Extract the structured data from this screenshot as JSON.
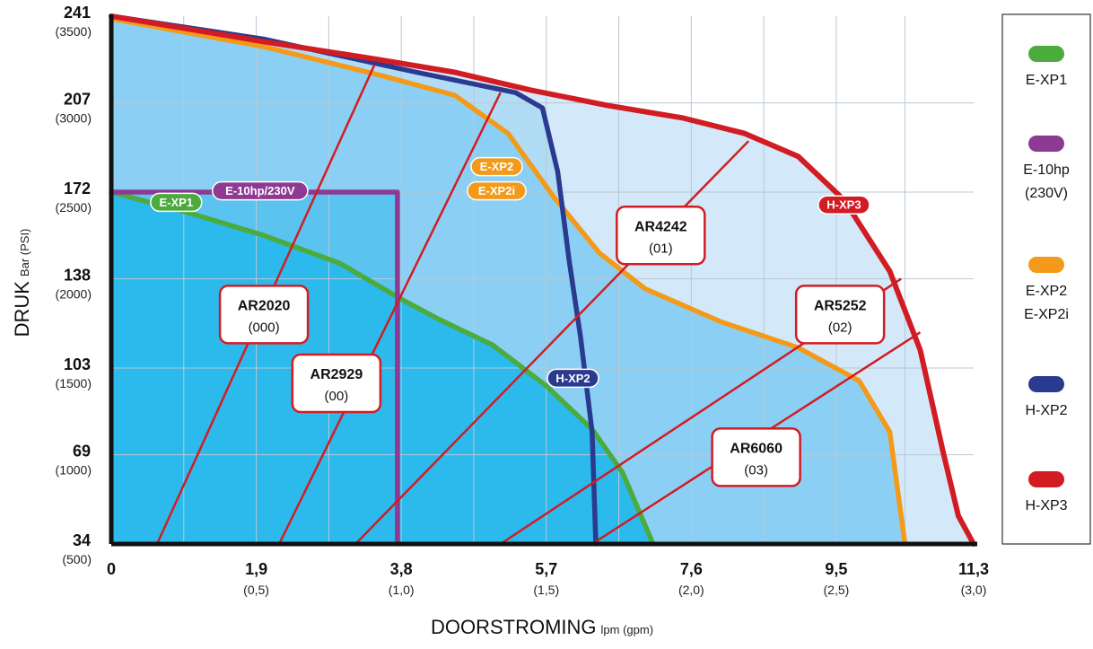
{
  "chart_data": {
    "type": "line",
    "title": "",
    "xlabel": "DOORSTROMING",
    "xunit": "lpm (gpm)",
    "ylabel": "DRUK",
    "yunit": "Bar (PSI)",
    "grid": true,
    "legend_placement": "right",
    "x_ticks": [
      {
        "value": 0,
        "label": "0",
        "sub": ""
      },
      {
        "value": 1.9,
        "label": "1,9",
        "sub": "(0,5)"
      },
      {
        "value": 3.8,
        "label": "3,8",
        "sub": "(1,0)"
      },
      {
        "value": 5.7,
        "label": "5,7",
        "sub": "(1,5)"
      },
      {
        "value": 7.6,
        "label": "7,6",
        "sub": "(2,0)"
      },
      {
        "value": 9.5,
        "label": "9,5",
        "sub": "(2,5)"
      },
      {
        "value": 11.3,
        "label": "11,3",
        "sub": "(3,0)"
      }
    ],
    "y_ticks": [
      {
        "value": 241,
        "label": "241",
        "sub": "(3500)"
      },
      {
        "value": 207,
        "label": "207",
        "sub": "(3000)"
      },
      {
        "value": 172,
        "label": "172",
        "sub": "(2500)"
      },
      {
        "value": 138,
        "label": "138",
        "sub": "(2000)"
      },
      {
        "value": 103,
        "label": "103",
        "sub": "(1500)"
      },
      {
        "value": 69,
        "label": "69",
        "sub": "(1000)"
      },
      {
        "value": 34,
        "label": "34",
        "sub": "(500)"
      }
    ],
    "xlim": [
      0,
      11.3
    ],
    "ylim": [
      34,
      241
    ],
    "series": [
      {
        "name": "E-XP1",
        "color": "#4bab3d",
        "tag": "E-XP1",
        "tag_at": [
          0.85,
          168
        ],
        "points": [
          [
            0,
            172
          ],
          [
            1,
            164
          ],
          [
            2,
            155
          ],
          [
            3,
            144
          ],
          [
            3.8,
            130
          ],
          [
            4.3,
            122
          ],
          [
            5,
            112
          ],
          [
            5.7,
            96
          ],
          [
            6.3,
            79
          ],
          [
            6.7,
            62
          ],
          [
            7.1,
            34
          ]
        ]
      },
      {
        "name": "E-10hp",
        "color": "#8e3a93",
        "tag": "E-10hp/230V",
        "tag_at": [
          1.95,
          172.5
        ],
        "points": [
          [
            0,
            172
          ],
          [
            3.75,
            172
          ],
          [
            3.75,
            34
          ]
        ]
      },
      {
        "name": "E-XP2 E-XP2i",
        "color": "#f39a1a",
        "tag": "E-XP2",
        "tag_at": [
          5.05,
          182
        ],
        "points": [
          [
            0,
            240
          ],
          [
            2,
            229
          ],
          [
            3.5,
            218
          ],
          [
            4.5,
            210
          ],
          [
            5.2,
            195
          ],
          [
            5.8,
            170
          ],
          [
            6.4,
            148
          ],
          [
            7,
            134
          ],
          [
            8,
            121
          ],
          [
            9,
            111
          ],
          [
            9.8,
            98
          ],
          [
            10.2,
            78
          ],
          [
            10.4,
            34
          ]
        ]
      },
      {
        "name": "H-XP2",
        "color": "#2a3a8e",
        "tag": "H-XP2",
        "tag_at": [
          6.05,
          99
        ],
        "points": [
          [
            0,
            241
          ],
          [
            2,
            232
          ],
          [
            4,
            219
          ],
          [
            5.3,
            211
          ],
          [
            5.65,
            205
          ],
          [
            5.85,
            180
          ],
          [
            6.0,
            145
          ],
          [
            6.15,
            115
          ],
          [
            6.3,
            78
          ],
          [
            6.35,
            34
          ]
        ]
      },
      {
        "name": "H-XP3",
        "color": "#d21c23",
        "tag": "H-XP3",
        "tag_at": [
          9.6,
          167
        ],
        "points": [
          [
            0,
            241
          ],
          [
            2,
            231
          ],
          [
            3.5,
            224
          ],
          [
            4.5,
            219
          ],
          [
            5.5,
            212
          ],
          [
            6.5,
            206
          ],
          [
            7.5,
            201
          ],
          [
            8.3,
            195
          ],
          [
            9,
            186
          ],
          [
            9.6,
            169
          ],
          [
            10.2,
            141
          ],
          [
            10.6,
            110
          ],
          [
            10.9,
            70
          ],
          [
            11.1,
            45
          ],
          [
            11.3,
            34
          ]
        ]
      }
    ],
    "nozzle_curves": [
      {
        "name": "AR2020",
        "code": "(000)",
        "points": [
          [
            0.6,
            34
          ],
          [
            3.45,
            222
          ]
        ],
        "box_at": [
          2.0,
          124
        ]
      },
      {
        "name": "AR2929",
        "code": "(00)",
        "points": [
          [
            2.2,
            34
          ],
          [
            5.1,
            211
          ]
        ],
        "box_at": [
          2.95,
          97
        ]
      },
      {
        "name": "AR4242",
        "code": "(01)",
        "points": [
          [
            3.2,
            34
          ],
          [
            8.35,
            192
          ]
        ],
        "box_at": [
          7.2,
          155
        ]
      },
      {
        "name": "AR5252",
        "code": "(02)",
        "points": [
          [
            5.1,
            34
          ],
          [
            10.35,
            138
          ]
        ],
        "box_at": [
          9.55,
          124
        ]
      },
      {
        "name": "AR6060",
        "code": "(03)",
        "points": [
          [
            6.3,
            34
          ],
          [
            10.6,
            117
          ]
        ],
        "box_at": [
          8.45,
          68
        ]
      }
    ],
    "extra_tags": [
      {
        "text": "E-XP2i",
        "color": "#f39a1a",
        "at": [
          5.05,
          172.5
        ]
      }
    ],
    "fill_colors": [
      "#d3e9f9",
      "#b1dcf6",
      "#8bd0f4",
      "#5ac3ef",
      "#2cb9ec"
    ],
    "frame_color": "#111111",
    "grid_color": "#b8c8d4"
  },
  "legend": [
    {
      "label": "E-XP1",
      "color": "#4bab3d"
    },
    {
      "label": "E-10hp\n(230V)",
      "color": "#8e3a93"
    },
    {
      "label": "E-XP2\nE-XP2i",
      "color": "#f39a1a"
    },
    {
      "label": "H-XP2",
      "color": "#2a3a8e"
    },
    {
      "label": "H-XP3",
      "color": "#d21c23"
    }
  ]
}
